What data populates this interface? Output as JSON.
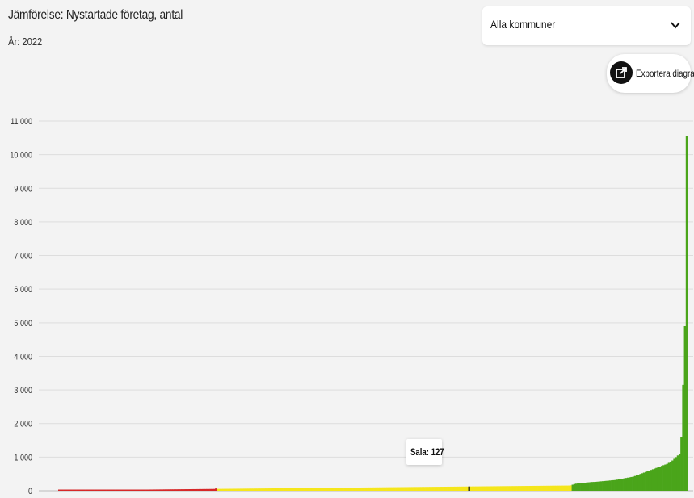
{
  "header": {
    "title": "Jämförelse: Nystartade företag, antal",
    "year_label": "År: 2022"
  },
  "filter": {
    "selected": "Alla kommuner"
  },
  "export": {
    "label": "Exportera diagram",
    "icon": "export-icon"
  },
  "tooltip": {
    "label": "Sala: 127"
  },
  "colors": {
    "red": "#d62728",
    "yellow": "#f5e61b",
    "green": "#4aa51a",
    "highlight": "#111111",
    "grid": "#dddddd"
  },
  "chart_data": {
    "type": "bar",
    "title": "Jämförelse: Nystartade företag, antal",
    "subtitle": "År: 2022",
    "xlabel": "",
    "ylabel": "",
    "ylim": [
      0,
      11000
    ],
    "yticks": [
      0,
      1000,
      2000,
      3000,
      4000,
      5000,
      6000,
      7000,
      8000,
      9000,
      10000,
      11000
    ],
    "ytick_labels": [
      "0",
      "1 000",
      "2 000",
      "3 000",
      "4 000",
      "5 000",
      "6 000",
      "7 000",
      "8 000",
      "9 000",
      "10 000",
      "11 000"
    ],
    "grid": true,
    "highlight": {
      "name": "Sala",
      "value": 127
    },
    "series": [
      {
        "band": "red",
        "values": [
          13,
          13,
          14,
          14,
          15,
          15,
          16,
          16,
          16,
          17,
          17,
          18,
          18,
          19,
          19,
          20,
          20,
          21,
          21,
          22,
          22,
          23,
          23,
          24,
          24,
          25,
          25,
          26,
          26,
          27,
          27,
          28,
          28,
          28,
          29,
          29,
          30,
          30,
          31,
          31,
          32,
          32,
          33,
          33,
          34,
          34,
          35,
          35,
          36,
          36,
          36,
          37,
          37,
          38,
          38,
          39,
          39,
          40,
          40,
          41,
          41,
          42,
          42,
          43,
          43,
          44,
          44,
          45,
          45,
          46,
          46,
          47,
          47,
          48,
          48,
          49,
          49,
          50,
          50,
          51,
          51,
          52,
          52,
          53,
          53,
          54,
          54,
          55,
          70
        ]
      },
      {
        "band": "yellow",
        "values": [
          56,
          57,
          57,
          58,
          58,
          59,
          59,
          60,
          60,
          61,
          61,
          62,
          62,
          63,
          63,
          64,
          64,
          65,
          65,
          66,
          66,
          67,
          67,
          68,
          68,
          69,
          69,
          70,
          70,
          71,
          71,
          72,
          72,
          73,
          73,
          74,
          74,
          75,
          75,
          76,
          76,
          77,
          77,
          78,
          78,
          79,
          79,
          80,
          80,
          81,
          81,
          82,
          82,
          83,
          83,
          84,
          84,
          85,
          85,
          86,
          86,
          87,
          87,
          88,
          88,
          89,
          89,
          90,
          90,
          91,
          91,
          92,
          92,
          93,
          93,
          94,
          94,
          95,
          95,
          96,
          96,
          97,
          97,
          98,
          98,
          99,
          99,
          100,
          100,
          101,
          101,
          102,
          102,
          103,
          103,
          104,
          104,
          105,
          105,
          106,
          106,
          107,
          107,
          108,
          108,
          109,
          109,
          110,
          110,
          111,
          111,
          112,
          112,
          113,
          113,
          114,
          114,
          115,
          115,
          116,
          116,
          117,
          117,
          118,
          118,
          119,
          119,
          120,
          120,
          121,
          121,
          122,
          122,
          123,
          123,
          124,
          124,
          125,
          125,
          126,
          126,
          127,
          127,
          128,
          128,
          129,
          129,
          130,
          130,
          131,
          131,
          132,
          132,
          133,
          133,
          134,
          134,
          135,
          135,
          136,
          136,
          137,
          137,
          138,
          138,
          139,
          139,
          140,
          140,
          141,
          141,
          142,
          142,
          143,
          143,
          144,
          144,
          145,
          145,
          146,
          146,
          147,
          147,
          148,
          148,
          149,
          149,
          150,
          150,
          151,
          151,
          152,
          152,
          153,
          153,
          154,
          154,
          155,
          160
        ]
      },
      {
        "band": "green",
        "values": [
          180,
          200,
          210,
          220,
          225,
          230,
          235,
          240,
          245,
          250,
          255,
          260,
          262,
          265,
          270,
          275,
          280,
          285,
          290,
          295,
          300,
          305,
          310,
          315,
          320,
          330,
          340,
          350,
          360,
          370,
          380,
          390,
          400,
          410,
          420,
          440,
          460,
          480,
          500,
          520,
          540,
          560,
          580,
          600,
          620,
          640,
          660,
          680,
          700,
          720,
          740,
          760,
          780,
          800,
          830,
          860,
          900,
          950,
          1000,
          1050,
          1100,
          1600,
          3150,
          4900,
          10550
        ]
      }
    ]
  }
}
